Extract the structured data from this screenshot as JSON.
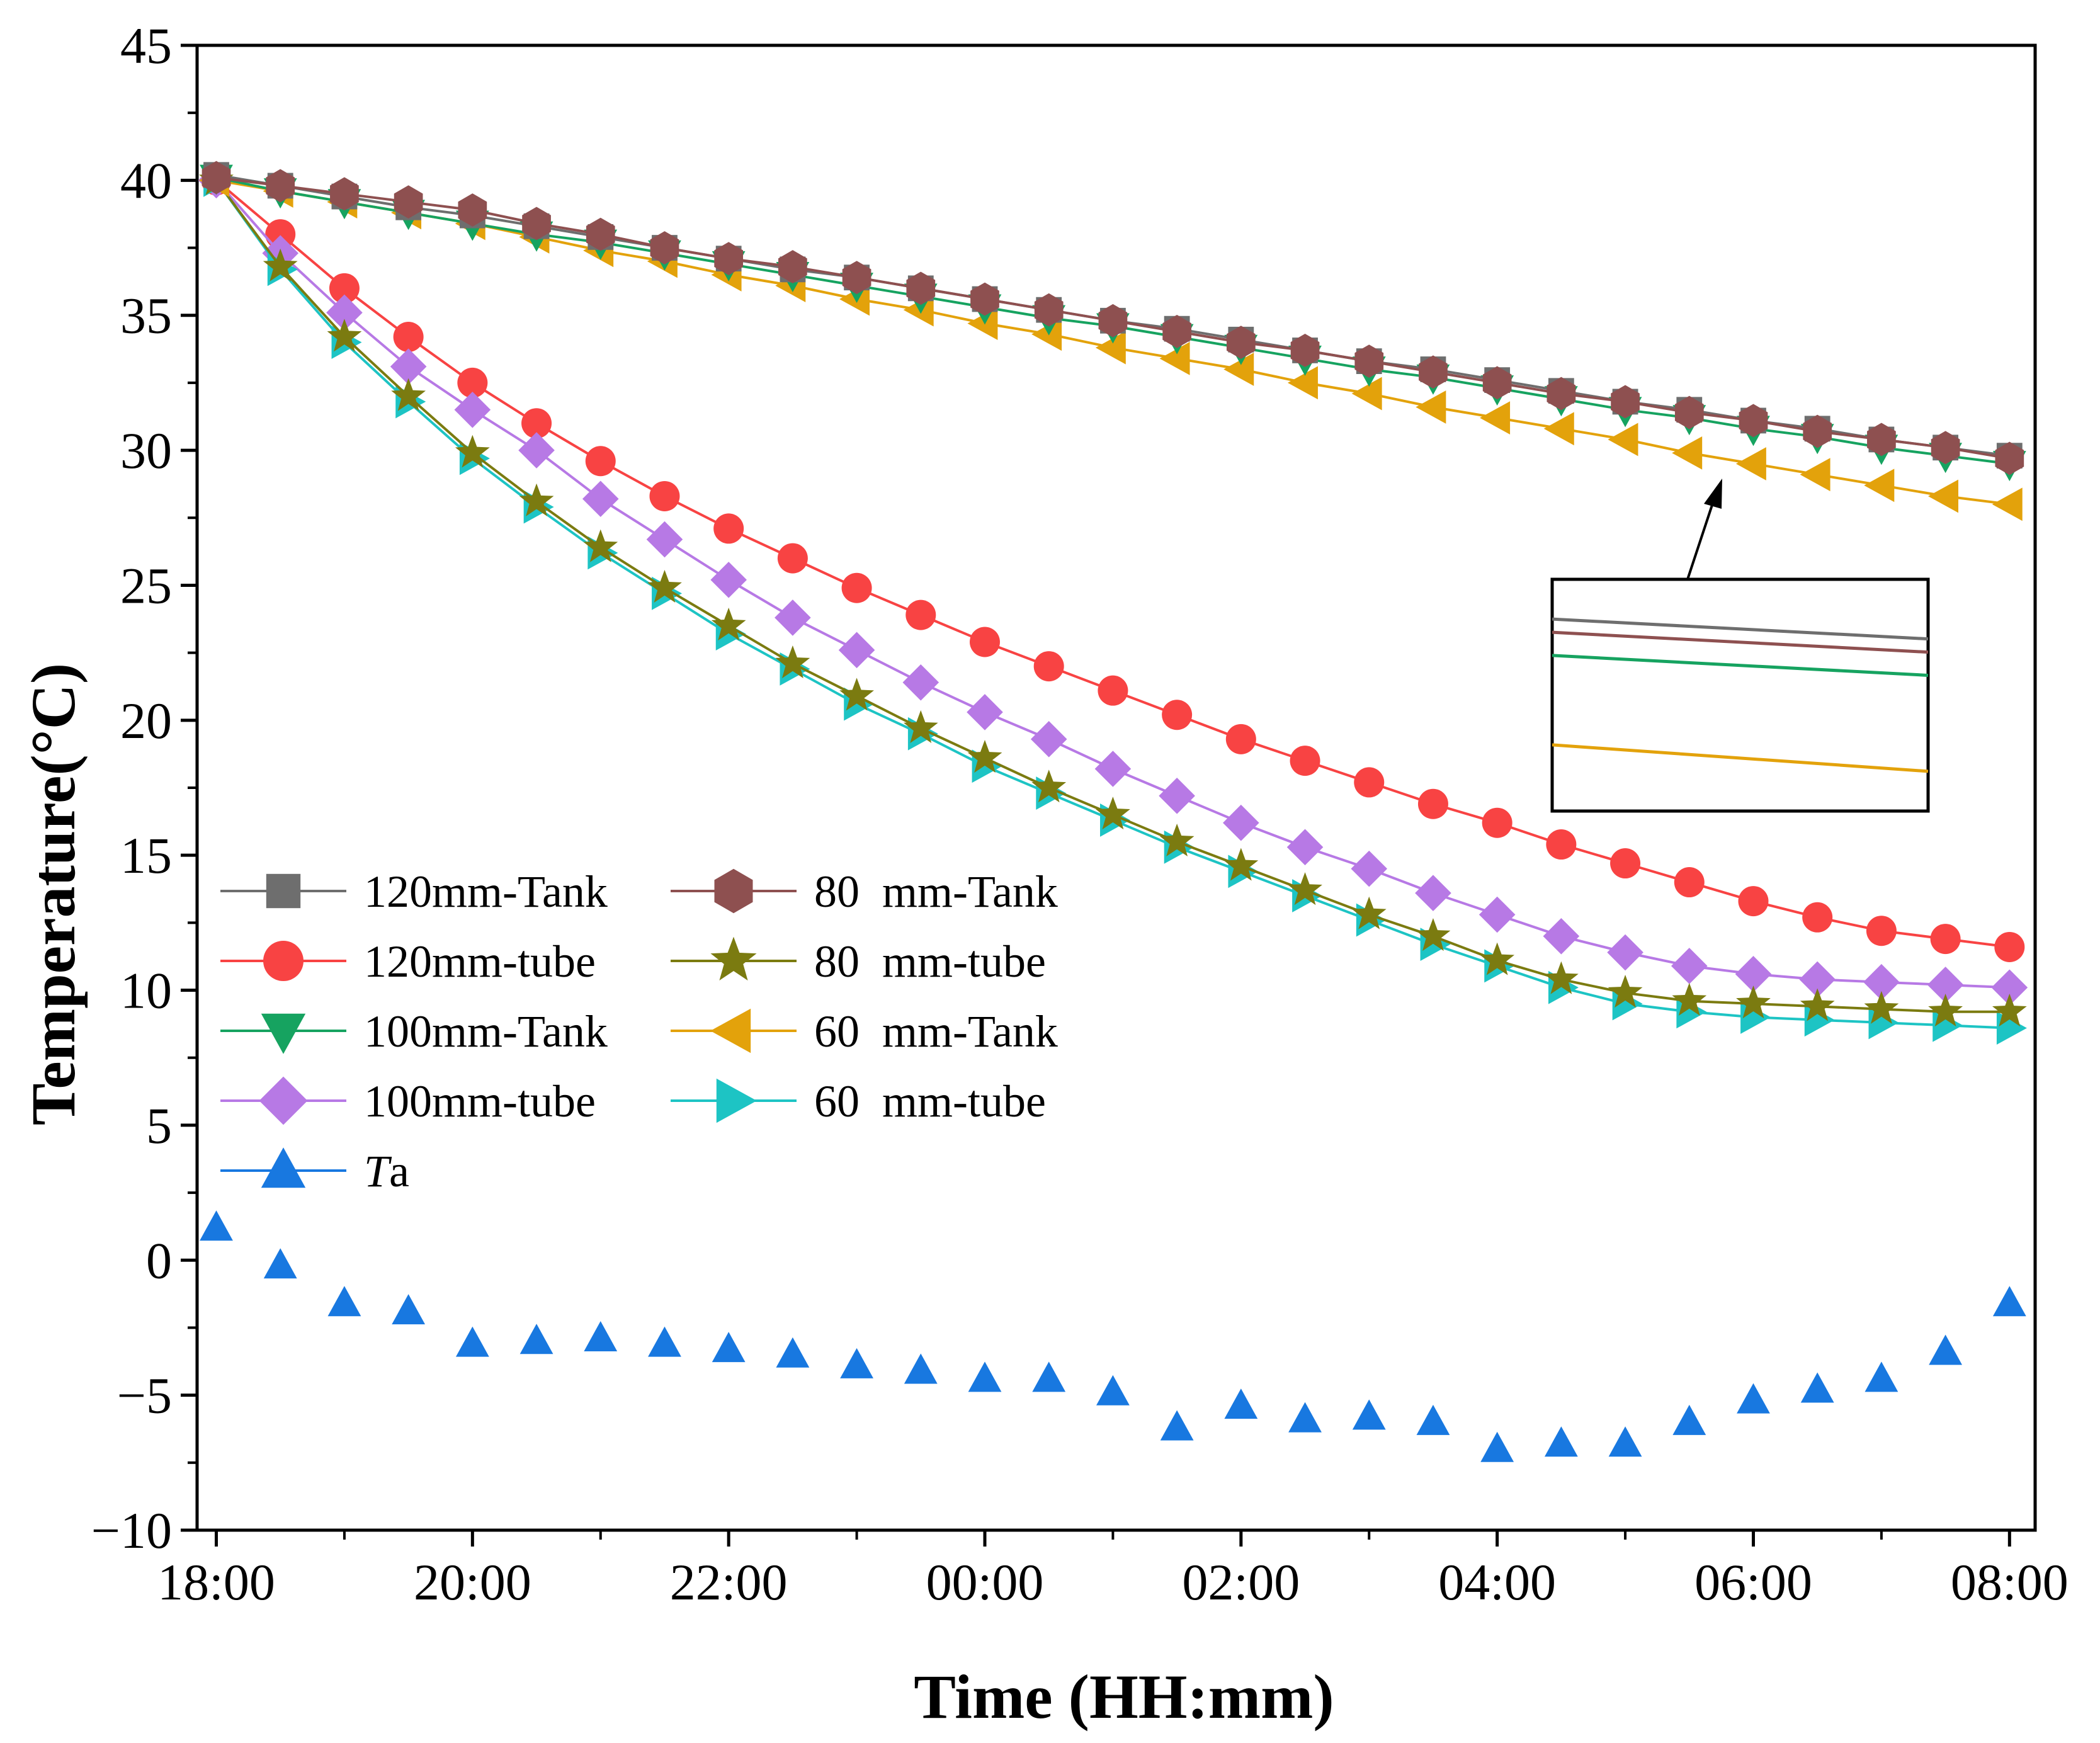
{
  "chart_data": {
    "type": "line",
    "title": "",
    "xlabel": "Time (HH:mm)",
    "ylabel": "Temperature(°C)",
    "ylim": [
      -10,
      45
    ],
    "yticks": [
      -10,
      -5,
      0,
      5,
      10,
      15,
      20,
      25,
      30,
      35,
      40,
      45
    ],
    "xlim": [
      -0.15,
      14.2
    ],
    "xticks": [
      {
        "v": 0,
        "label": "18:00"
      },
      {
        "v": 2,
        "label": "20:00"
      },
      {
        "v": 4,
        "label": "22:00"
      },
      {
        "v": 6,
        "label": "00:00"
      },
      {
        "v": 8,
        "label": "02:00"
      },
      {
        "v": 10,
        "label": "04:00"
      },
      {
        "v": 12,
        "label": "06:00"
      },
      {
        "v": 14,
        "label": "08:00"
      }
    ],
    "x": [
      0,
      0.5,
      1,
      1.5,
      2,
      2.5,
      3,
      3.5,
      4,
      4.5,
      5,
      5.5,
      6,
      6.5,
      7,
      7.5,
      8,
      8.5,
      9,
      9.5,
      10,
      10.5,
      11,
      11.5,
      12,
      12.5,
      13,
      13.5,
      14
    ],
    "series": [
      {
        "name": "120mm-Tank",
        "color": "#6e6e6e",
        "marker": "square",
        "values": [
          40.2,
          39.8,
          39.4,
          39.0,
          38.7,
          38.3,
          37.9,
          37.5,
          37.1,
          36.7,
          36.4,
          36.0,
          35.6,
          35.2,
          34.8,
          34.5,
          34.1,
          33.7,
          33.3,
          33.0,
          32.6,
          32.2,
          31.8,
          31.5,
          31.1,
          30.8,
          30.4,
          30.1,
          29.8
        ]
      },
      {
        "name": "120mm-tube",
        "color": "#f84343",
        "marker": "circle",
        "values": [
          40.0,
          38.0,
          36.0,
          34.2,
          32.5,
          31.0,
          29.6,
          28.3,
          27.1,
          26.0,
          24.9,
          23.9,
          22.9,
          22.0,
          21.1,
          20.2,
          19.3,
          18.5,
          17.7,
          16.9,
          16.2,
          15.4,
          14.7,
          14.0,
          13.3,
          12.7,
          12.2,
          11.9,
          11.6
        ]
      },
      {
        "name": "100mm-Tank",
        "color": "#16a360",
        "marker": "triangle-down",
        "values": [
          40.1,
          39.6,
          39.2,
          38.8,
          38.4,
          38.0,
          37.7,
          37.3,
          36.9,
          36.5,
          36.1,
          35.7,
          35.3,
          34.9,
          34.6,
          34.2,
          33.8,
          33.4,
          33.0,
          32.7,
          32.3,
          31.9,
          31.5,
          31.2,
          30.8,
          30.5,
          30.1,
          29.8,
          29.5
        ]
      },
      {
        "name": "100mm-tube",
        "color": "#b779e5",
        "marker": "diamond",
        "values": [
          40.0,
          37.3,
          35.1,
          33.1,
          31.5,
          30.0,
          28.2,
          26.7,
          25.2,
          23.8,
          22.6,
          21.4,
          20.3,
          19.3,
          18.2,
          17.2,
          16.2,
          15.3,
          14.5,
          13.6,
          12.8,
          12.0,
          11.4,
          10.9,
          10.6,
          10.4,
          10.3,
          10.2,
          10.1
        ]
      },
      {
        "name": "Ta",
        "color": "#1878e0",
        "marker": "triangle-up",
        "no_line": true,
        "values": [
          1.2,
          -0.2,
          -1.6,
          -1.9,
          -3.1,
          -3.0,
          -2.9,
          -3.1,
          -3.3,
          -3.5,
          -3.9,
          -4.1,
          -4.4,
          -4.4,
          -4.9,
          -6.2,
          -5.4,
          -5.9,
          -5.8,
          -6.0,
          -7.0,
          -6.8,
          -6.8,
          -6.0,
          -5.2,
          -4.8,
          -4.4,
          -3.4,
          -1.6
        ]
      },
      {
        "name": "80  mm-Tank",
        "color": "#8e5050",
        "marker": "hexagon",
        "values": [
          40.1,
          39.8,
          39.5,
          39.2,
          38.9,
          38.4,
          38.0,
          37.5,
          37.1,
          36.8,
          36.4,
          36.0,
          35.6,
          35.2,
          34.8,
          34.4,
          34.0,
          33.7,
          33.3,
          32.9,
          32.5,
          32.1,
          31.8,
          31.4,
          31.1,
          30.7,
          30.4,
          30.1,
          29.7
        ]
      },
      {
        "name": "80  mm-tube",
        "color": "#7b7b10",
        "marker": "star",
        "values": [
          40.0,
          36.8,
          34.2,
          32.0,
          29.9,
          28.1,
          26.4,
          24.9,
          23.5,
          22.1,
          20.9,
          19.7,
          18.6,
          17.5,
          16.5,
          15.5,
          14.6,
          13.7,
          12.8,
          12.0,
          11.1,
          10.4,
          9.9,
          9.6,
          9.5,
          9.4,
          9.3,
          9.2,
          9.2
        ]
      },
      {
        "name": "60  mm-Tank",
        "color": "#e3a20b",
        "marker": "triangle-left",
        "values": [
          40.0,
          39.6,
          39.2,
          38.8,
          38.4,
          37.9,
          37.4,
          37.0,
          36.5,
          36.1,
          35.6,
          35.2,
          34.7,
          34.3,
          33.8,
          33.4,
          33.0,
          32.5,
          32.1,
          31.6,
          31.2,
          30.8,
          30.4,
          29.9,
          29.5,
          29.1,
          28.7,
          28.3,
          28.0
        ]
      },
      {
        "name": "60  mm-tube",
        "color": "#1dc4c4",
        "marker": "triangle-right",
        "values": [
          40.0,
          36.7,
          34.0,
          31.8,
          29.7,
          27.9,
          26.2,
          24.7,
          23.2,
          21.9,
          20.6,
          19.5,
          18.3,
          17.3,
          16.3,
          15.3,
          14.4,
          13.5,
          12.6,
          11.7,
          10.9,
          10.1,
          9.5,
          9.2,
          9.0,
          8.9,
          8.8,
          8.7,
          8.6
        ]
      }
    ],
    "legend_columns": [
      [
        "120mm-Tank",
        "120mm-tube",
        "100mm-Tank",
        "100mm-tube",
        "Ta"
      ],
      [
        "80  mm-Tank",
        "80  mm-tube",
        "60  mm-Tank",
        "60  mm-tube"
      ]
    ],
    "legend_position": "lower-left",
    "inset": {
      "description_ref": "zoom of tank curves near 06:00",
      "lines": [
        {
          "series": "120mm-Tank",
          "color": "#6e6e6e",
          "start": 30.9,
          "end": 30.6
        },
        {
          "series": "80  mm-Tank",
          "color": "#8e5050",
          "start": 30.7,
          "end": 30.4
        },
        {
          "series": "100mm-Tank",
          "color": "#16a360",
          "start": 30.35,
          "end": 30.05
        },
        {
          "series": "60  mm-Tank",
          "color": "#e3a20b",
          "start": 29.0,
          "end": 28.6
        }
      ],
      "range": [
        28.0,
        31.5
      ]
    }
  }
}
